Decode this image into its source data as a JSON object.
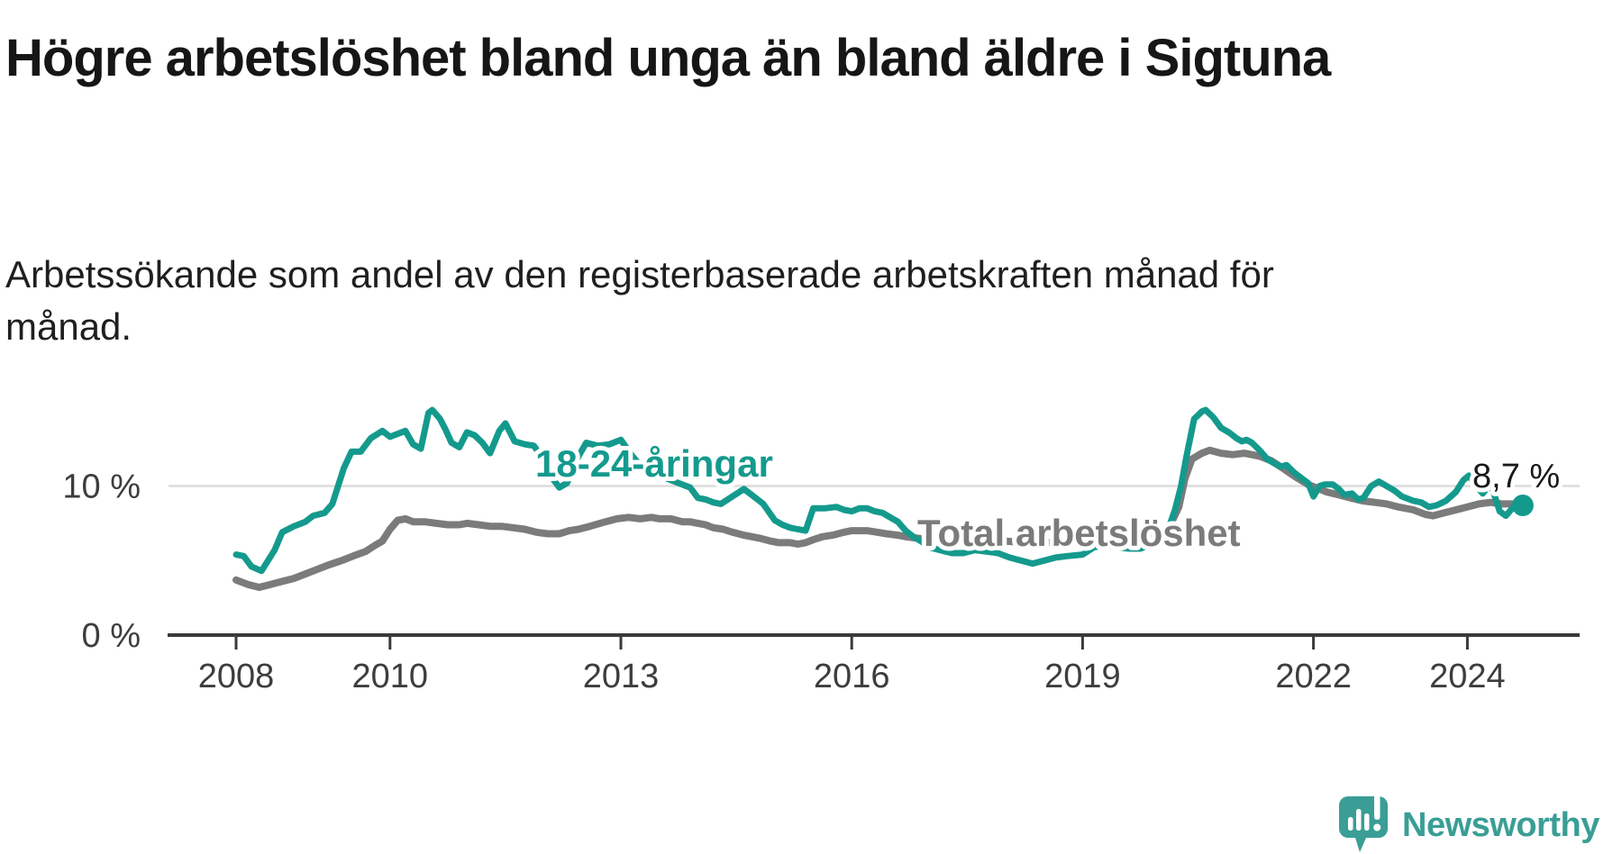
{
  "header": {
    "title": "Högre arbetslöshet bland unga än bland äldre i Sigtuna",
    "subtitle": "Arbetssökande som andel av den registerbaserade arbetskraften månad för månad."
  },
  "chart_data": {
    "type": "line",
    "title": "Högre arbetslöshet bland unga än bland äldre i Sigtuna",
    "subtitle": "Arbetssökande som andel av den registerbaserade arbetskraften månad för månad.",
    "x_unit": "decimal_year",
    "xlim": [
      2008,
      2025.2
    ],
    "ylim": [
      0,
      16.5
    ],
    "grid": "single horizontal gridline at 10%",
    "legend_position": "inline labels on lines",
    "x_ticks": [
      2008,
      2010,
      2013,
      2016,
      2019,
      2022,
      2024
    ],
    "x_tick_labels": [
      "2008",
      "2010",
      "2013",
      "2016",
      "2019",
      "2022",
      "2024"
    ],
    "y_ticks": [
      {
        "value": 0,
        "label": "0 %"
      },
      {
        "value": 10,
        "label": "10 %"
      }
    ],
    "end_annotation": {
      "text": "8,7 %",
      "value": 8.7,
      "x": 2024.72,
      "series": "18-24-åringar",
      "dot": true
    },
    "series": [
      {
        "name": "Total arbetslöshet",
        "color": "#7B7B7B",
        "points": [
          [
            2008.0,
            3.7
          ],
          [
            2008.15,
            3.4
          ],
          [
            2008.3,
            3.2
          ],
          [
            2008.45,
            3.4
          ],
          [
            2008.6,
            3.6
          ],
          [
            2008.75,
            3.8
          ],
          [
            2008.9,
            4.1
          ],
          [
            2009.05,
            4.4
          ],
          [
            2009.2,
            4.7
          ],
          [
            2009.37,
            5.0
          ],
          [
            2009.52,
            5.3
          ],
          [
            2009.68,
            5.6
          ],
          [
            2009.8,
            6.0
          ],
          [
            2009.9,
            6.3
          ],
          [
            2010.0,
            7.1
          ],
          [
            2010.1,
            7.7
          ],
          [
            2010.2,
            7.8
          ],
          [
            2010.3,
            7.6
          ],
          [
            2010.45,
            7.6
          ],
          [
            2010.6,
            7.5
          ],
          [
            2010.75,
            7.4
          ],
          [
            2010.9,
            7.4
          ],
          [
            2011.0,
            7.5
          ],
          [
            2011.15,
            7.4
          ],
          [
            2011.3,
            7.3
          ],
          [
            2011.45,
            7.3
          ],
          [
            2011.6,
            7.2
          ],
          [
            2011.75,
            7.1
          ],
          [
            2011.9,
            6.9
          ],
          [
            2012.05,
            6.8
          ],
          [
            2012.2,
            6.8
          ],
          [
            2012.33,
            7.0
          ],
          [
            2012.45,
            7.1
          ],
          [
            2012.6,
            7.3
          ],
          [
            2012.8,
            7.6
          ],
          [
            2012.95,
            7.8
          ],
          [
            2013.1,
            7.9
          ],
          [
            2013.25,
            7.8
          ],
          [
            2013.4,
            7.9
          ],
          [
            2013.5,
            7.8
          ],
          [
            2013.65,
            7.8
          ],
          [
            2013.8,
            7.6
          ],
          [
            2013.9,
            7.6
          ],
          [
            2014.0,
            7.5
          ],
          [
            2014.1,
            7.4
          ],
          [
            2014.2,
            7.2
          ],
          [
            2014.33,
            7.1
          ],
          [
            2014.45,
            6.9
          ],
          [
            2014.6,
            6.7
          ],
          [
            2014.8,
            6.5
          ],
          [
            2014.95,
            6.3
          ],
          [
            2015.05,
            6.2
          ],
          [
            2015.2,
            6.2
          ],
          [
            2015.3,
            6.1
          ],
          [
            2015.4,
            6.2
          ],
          [
            2015.5,
            6.4
          ],
          [
            2015.62,
            6.6
          ],
          [
            2015.75,
            6.7
          ],
          [
            2015.9,
            6.9
          ],
          [
            2016.0,
            7.0
          ],
          [
            2016.1,
            7.0
          ],
          [
            2016.2,
            7.0
          ],
          [
            2016.33,
            6.9
          ],
          [
            2016.45,
            6.8
          ],
          [
            2016.6,
            6.7
          ],
          [
            2016.7,
            6.6
          ],
          [
            2016.85,
            6.5
          ],
          [
            2017.0,
            6.4
          ],
          [
            2017.25,
            6.4
          ],
          [
            2017.5,
            6.4
          ],
          [
            2017.75,
            6.4
          ],
          [
            2018.0,
            6.3
          ],
          [
            2018.25,
            6.2
          ],
          [
            2018.5,
            6.2
          ],
          [
            2018.75,
            6.3
          ],
          [
            2019.0,
            6.3
          ],
          [
            2019.25,
            6.4
          ],
          [
            2019.5,
            6.5
          ],
          [
            2019.75,
            6.6
          ],
          [
            2019.9,
            6.7
          ],
          [
            2020.05,
            7.0
          ],
          [
            2020.15,
            7.5
          ],
          [
            2020.25,
            8.6
          ],
          [
            2020.33,
            10.5
          ],
          [
            2020.42,
            11.8
          ],
          [
            2020.55,
            12.2
          ],
          [
            2020.65,
            12.4
          ],
          [
            2020.8,
            12.2
          ],
          [
            2020.95,
            12.1
          ],
          [
            2021.1,
            12.2
          ],
          [
            2021.2,
            12.1
          ],
          [
            2021.3,
            12.0
          ],
          [
            2021.45,
            11.7
          ],
          [
            2021.6,
            11.2
          ],
          [
            2021.77,
            10.6
          ],
          [
            2021.93,
            10.1
          ],
          [
            2022.08,
            9.8
          ],
          [
            2022.17,
            9.6
          ],
          [
            2022.33,
            9.4
          ],
          [
            2022.48,
            9.2
          ],
          [
            2022.64,
            9.0
          ],
          [
            2022.8,
            8.9
          ],
          [
            2022.95,
            8.8
          ],
          [
            2023.1,
            8.6
          ],
          [
            2023.3,
            8.4
          ],
          [
            2023.45,
            8.1
          ],
          [
            2023.55,
            8.0
          ],
          [
            2023.7,
            8.2
          ],
          [
            2023.85,
            8.4
          ],
          [
            2024.0,
            8.6
          ],
          [
            2024.15,
            8.8
          ],
          [
            2024.3,
            8.9
          ],
          [
            2024.45,
            8.8
          ],
          [
            2024.6,
            8.8
          ],
          [
            2024.72,
            8.8
          ]
        ]
      },
      {
        "name": "18-24-åringar",
        "color": "#149A8D",
        "points": [
          [
            2008.0,
            5.4
          ],
          [
            2008.1,
            5.3
          ],
          [
            2008.2,
            4.6
          ],
          [
            2008.33,
            4.3
          ],
          [
            2008.5,
            5.7
          ],
          [
            2008.6,
            6.9
          ],
          [
            2008.75,
            7.3
          ],
          [
            2008.9,
            7.6
          ],
          [
            2009.0,
            8.0
          ],
          [
            2009.15,
            8.2
          ],
          [
            2009.25,
            8.8
          ],
          [
            2009.4,
            11.2
          ],
          [
            2009.5,
            12.3
          ],
          [
            2009.62,
            12.3
          ],
          [
            2009.75,
            13.2
          ],
          [
            2009.9,
            13.7
          ],
          [
            2010.0,
            13.3
          ],
          [
            2010.1,
            13.5
          ],
          [
            2010.2,
            13.7
          ],
          [
            2010.3,
            12.8
          ],
          [
            2010.4,
            12.5
          ],
          [
            2010.5,
            14.9
          ],
          [
            2010.55,
            15.1
          ],
          [
            2010.65,
            14.5
          ],
          [
            2010.72,
            13.8
          ],
          [
            2010.8,
            12.9
          ],
          [
            2010.9,
            12.6
          ],
          [
            2011.0,
            13.6
          ],
          [
            2011.1,
            13.4
          ],
          [
            2011.2,
            12.9
          ],
          [
            2011.3,
            12.2
          ],
          [
            2011.42,
            13.7
          ],
          [
            2011.5,
            14.2
          ],
          [
            2011.62,
            13.0
          ],
          [
            2011.75,
            12.8
          ],
          [
            2011.87,
            12.7
          ],
          [
            2011.95,
            12.1
          ],
          [
            2012.1,
            10.6
          ],
          [
            2012.2,
            9.9
          ],
          [
            2012.3,
            10.2
          ],
          [
            2012.45,
            12.0
          ],
          [
            2012.55,
            12.9
          ],
          [
            2012.7,
            12.7
          ],
          [
            2012.85,
            12.8
          ],
          [
            2013.0,
            13.1
          ],
          [
            2013.15,
            12.0
          ],
          [
            2013.3,
            11.1
          ],
          [
            2013.45,
            10.9
          ],
          [
            2013.6,
            10.5
          ],
          [
            2013.75,
            10.2
          ],
          [
            2013.9,
            9.9
          ],
          [
            2014.0,
            9.2
          ],
          [
            2014.1,
            9.1
          ],
          [
            2014.2,
            8.9
          ],
          [
            2014.3,
            8.8
          ],
          [
            2014.45,
            9.3
          ],
          [
            2014.6,
            9.8
          ],
          [
            2014.7,
            9.4
          ],
          [
            2014.85,
            8.8
          ],
          [
            2015.0,
            7.7
          ],
          [
            2015.1,
            7.4
          ],
          [
            2015.2,
            7.2
          ],
          [
            2015.3,
            7.1
          ],
          [
            2015.4,
            7.0
          ],
          [
            2015.5,
            8.5
          ],
          [
            2015.65,
            8.5
          ],
          [
            2015.8,
            8.6
          ],
          [
            2015.9,
            8.4
          ],
          [
            2016.0,
            8.3
          ],
          [
            2016.1,
            8.5
          ],
          [
            2016.2,
            8.5
          ],
          [
            2016.3,
            8.3
          ],
          [
            2016.4,
            8.2
          ],
          [
            2016.5,
            7.9
          ],
          [
            2016.6,
            7.6
          ],
          [
            2016.7,
            7.0
          ],
          [
            2016.8,
            6.6
          ],
          [
            2016.9,
            6.3
          ],
          [
            2017.0,
            5.9
          ],
          [
            2017.15,
            5.7
          ],
          [
            2017.3,
            5.5
          ],
          [
            2017.45,
            5.5
          ],
          [
            2017.6,
            5.7
          ],
          [
            2017.75,
            5.6
          ],
          [
            2017.9,
            5.5
          ],
          [
            2018.05,
            5.2
          ],
          [
            2018.2,
            5.0
          ],
          [
            2018.35,
            4.8
          ],
          [
            2018.5,
            5.0
          ],
          [
            2018.65,
            5.2
          ],
          [
            2018.8,
            5.3
          ],
          [
            2019.0,
            5.4
          ],
          [
            2019.15,
            5.9
          ],
          [
            2019.3,
            6.0
          ],
          [
            2019.45,
            5.9
          ],
          [
            2019.6,
            5.8
          ],
          [
            2019.75,
            5.8
          ],
          [
            2019.9,
            6.1
          ],
          [
            2020.0,
            6.5
          ],
          [
            2020.1,
            6.9
          ],
          [
            2020.2,
            8.4
          ],
          [
            2020.28,
            10.0
          ],
          [
            2020.35,
            12.0
          ],
          [
            2020.45,
            14.5
          ],
          [
            2020.55,
            15.0
          ],
          [
            2020.6,
            15.1
          ],
          [
            2020.7,
            14.6
          ],
          [
            2020.8,
            13.9
          ],
          [
            2020.9,
            13.6
          ],
          [
            2021.0,
            13.2
          ],
          [
            2021.07,
            13.0
          ],
          [
            2021.13,
            13.1
          ],
          [
            2021.2,
            12.9
          ],
          [
            2021.3,
            12.4
          ],
          [
            2021.4,
            11.8
          ],
          [
            2021.5,
            11.5
          ],
          [
            2021.58,
            11.3
          ],
          [
            2021.65,
            11.4
          ],
          [
            2021.75,
            10.9
          ],
          [
            2021.85,
            10.5
          ],
          [
            2021.93,
            10.2
          ],
          [
            2022.0,
            9.3
          ],
          [
            2022.08,
            10.0
          ],
          [
            2022.15,
            10.1
          ],
          [
            2022.25,
            10.1
          ],
          [
            2022.33,
            9.8
          ],
          [
            2022.4,
            9.4
          ],
          [
            2022.5,
            9.5
          ],
          [
            2022.58,
            9.1
          ],
          [
            2022.65,
            9.2
          ],
          [
            2022.75,
            10.0
          ],
          [
            2022.85,
            10.3
          ],
          [
            2022.95,
            10.0
          ],
          [
            2023.05,
            9.7
          ],
          [
            2023.15,
            9.3
          ],
          [
            2023.3,
            9.0
          ],
          [
            2023.4,
            8.9
          ],
          [
            2023.5,
            8.6
          ],
          [
            2023.6,
            8.7
          ],
          [
            2023.72,
            9.0
          ],
          [
            2023.85,
            9.6
          ],
          [
            2023.95,
            10.4
          ],
          [
            2024.02,
            10.7
          ],
          [
            2024.1,
            10.1
          ],
          [
            2024.2,
            9.5
          ],
          [
            2024.3,
            10.2
          ],
          [
            2024.42,
            8.3
          ],
          [
            2024.5,
            8.0
          ],
          [
            2024.6,
            8.6
          ],
          [
            2024.72,
            8.7
          ]
        ]
      }
    ]
  },
  "colors": {
    "teal_line": "#149A8D",
    "gray_line": "#7B7B7B",
    "gridline": "#DCDCDC",
    "axis": "#3A3A3A",
    "text_dark": "#161616",
    "logo_teal": "#3A9E96"
  },
  "branding": {
    "logo_text": "Newsworthy",
    "logo_icon": "newsworthy-speech-bubble-bar-chart-icon"
  }
}
